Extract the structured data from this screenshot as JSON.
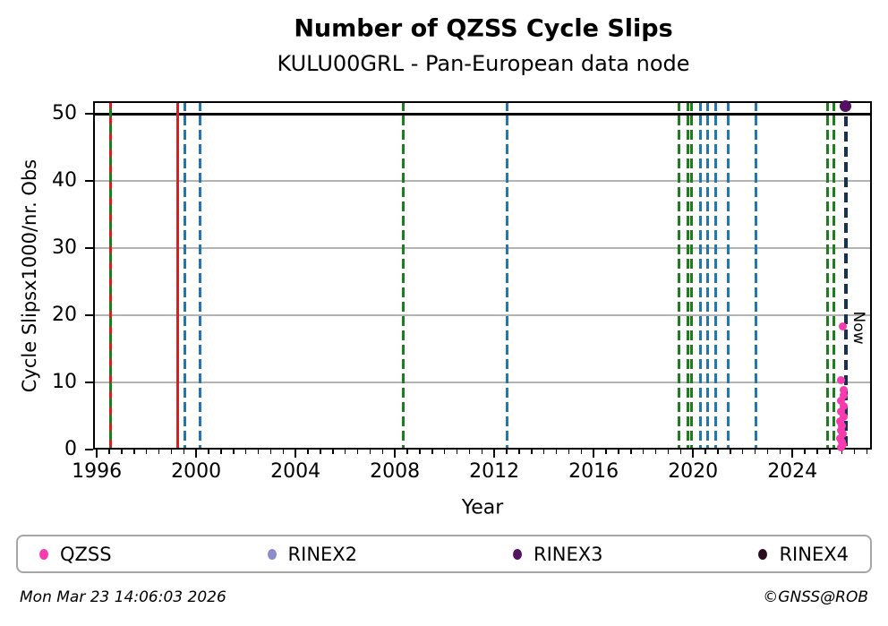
{
  "chart_data": {
    "type": "scatter",
    "title": "Number of QZSS Cycle Slips",
    "subtitle": "KULU00GRL - Pan-European data node",
    "xlabel": "Year",
    "ylabel": "Cycle Slipsx1000/nr. Obs",
    "xlim": [
      1995.85,
      2027.2
    ],
    "ylim": [
      0,
      51.9
    ],
    "x_major_ticks": [
      1996,
      2000,
      2004,
      2008,
      2012,
      2016,
      2020,
      2024
    ],
    "x_minor_step": 0.5,
    "y_ticks": [
      0,
      10,
      20,
      30,
      40,
      50
    ],
    "grid": {
      "y_values": [
        10,
        20,
        30,
        40
      ],
      "color": "#b3b3b3"
    },
    "hline": {
      "value": 50,
      "color": "#000000"
    },
    "legend_position": "bottom",
    "event_lines": [
      {
        "year": 1996.55,
        "color": "#1b7f1b",
        "style": "solid"
      },
      {
        "year": 1996.55,
        "color": "#d62020",
        "style": "dashed",
        "dash": [
          8,
          10
        ]
      },
      {
        "year": 1999.25,
        "color": "#d62020",
        "style": "solid"
      },
      {
        "year": 1999.55,
        "color": "#1f77b4",
        "style": "dashed"
      },
      {
        "year": 2000.15,
        "color": "#1f77b4",
        "style": "dashed"
      },
      {
        "year": 2008.35,
        "color": "#1b7f1b",
        "style": "dashed"
      },
      {
        "year": 2012.5,
        "color": "#1f77b4",
        "style": "dashed"
      },
      {
        "year": 2019.45,
        "color": "#1b7f1b",
        "style": "dashed"
      },
      {
        "year": 2019.8,
        "color": "#1b7f1b",
        "style": "dashed"
      },
      {
        "year": 2019.95,
        "color": "#1b7f1b",
        "style": "dashed"
      },
      {
        "year": 2020.3,
        "color": "#1f77b4",
        "style": "dashed"
      },
      {
        "year": 2020.6,
        "color": "#1f77b4",
        "style": "dashed"
      },
      {
        "year": 2020.9,
        "color": "#1f77b4",
        "style": "dashed"
      },
      {
        "year": 2021.4,
        "color": "#1f77b4",
        "style": "dashed"
      },
      {
        "year": 2022.55,
        "color": "#1f77b4",
        "style": "dashed"
      },
      {
        "year": 2025.42,
        "color": "#1b7f1b",
        "style": "dashed"
      },
      {
        "year": 2025.67,
        "color": "#1b7f1b",
        "style": "dashed"
      }
    ],
    "now_marker": {
      "year": 2026.15,
      "label": "Now",
      "color": "#16324c",
      "style": "dashed"
    },
    "series": [
      {
        "name": "QZSS",
        "color": "#f83cb0",
        "marker_size": 9,
        "points": [
          [
            2026.02,
            18.4
          ],
          [
            2025.97,
            10.4
          ],
          [
            2026.06,
            8.9
          ],
          [
            2026.08,
            8.1
          ],
          [
            2025.96,
            7.3
          ],
          [
            2026.05,
            6.5
          ],
          [
            2025.94,
            5.7
          ],
          [
            2026.06,
            4.9
          ],
          [
            2025.92,
            4.2
          ],
          [
            2026.0,
            3.5
          ],
          [
            2025.95,
            2.9
          ],
          [
            2026.04,
            2.3
          ],
          [
            2025.92,
            1.7
          ],
          [
            2026.0,
            1.2
          ],
          [
            2026.03,
            0.7
          ],
          [
            2025.97,
            0.3
          ]
        ]
      },
      {
        "name": "RINEX2",
        "color": "#8b8bc9",
        "marker_size": 9,
        "points": []
      },
      {
        "name": "RINEX3",
        "color": "#541162",
        "marker_size": 13,
        "points": [
          [
            2026.15,
            51.2
          ]
        ]
      },
      {
        "name": "RINEX4",
        "color": "#2b0d20",
        "marker_size": 9,
        "points": []
      }
    ]
  },
  "legend": {
    "items": [
      {
        "label": "QZSS",
        "color": "#f83cb0"
      },
      {
        "label": "RINEX2",
        "color": "#8b8bc9"
      },
      {
        "label": "RINEX3",
        "color": "#541162"
      },
      {
        "label": "RINEX4",
        "color": "#2b0d20"
      }
    ]
  },
  "footer": {
    "timestamp": "Mon Mar 23 14:06:03 2026",
    "credit": "©GNSS@ROB"
  }
}
